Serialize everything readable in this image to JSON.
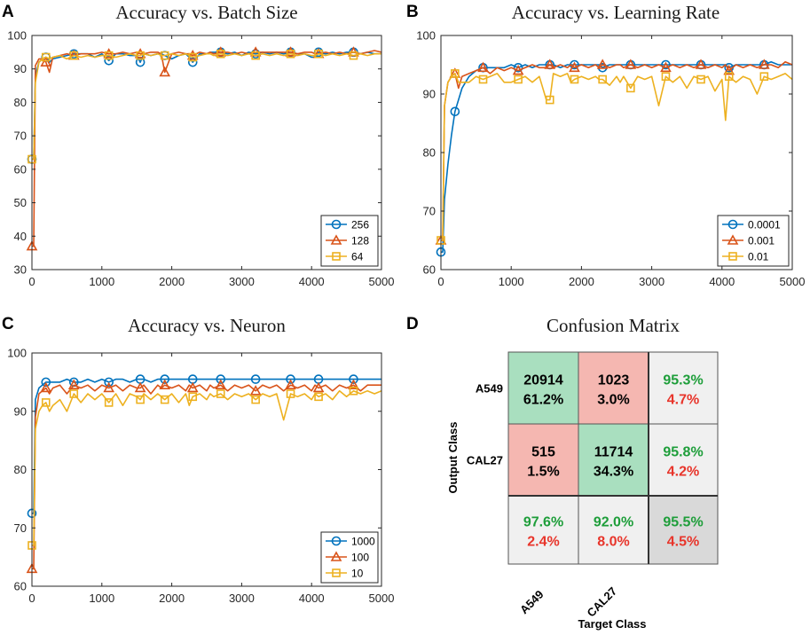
{
  "panels": [
    {
      "letter": "A",
      "title": "Accuracy vs. Batch Size"
    },
    {
      "letter": "B",
      "title": "Accuracy vs. Learning Rate"
    },
    {
      "letter": "C",
      "title": "Accuracy vs. Neuron"
    },
    {
      "letter": "D",
      "title": "Confusion Matrix"
    }
  ],
  "chart_data": [
    {
      "type": "line",
      "title": "Accuracy vs. Batch Size",
      "xlabel": "",
      "ylabel": "",
      "xlim": [
        0,
        5000
      ],
      "ylim": [
        30,
        100
      ],
      "xticks": [
        0,
        1000,
        2000,
        3000,
        4000,
        5000
      ],
      "yticks": [
        30,
        40,
        50,
        60,
        70,
        80,
        90,
        100
      ],
      "legend_position": "bottom-right",
      "x": [
        0,
        25,
        50,
        100,
        150,
        200,
        250,
        300,
        400,
        500,
        600,
        700,
        800,
        900,
        1000,
        1100,
        1200,
        1300,
        1400,
        1500,
        1550,
        1600,
        1700,
        1800,
        1850,
        1900,
        2000,
        2100,
        2200,
        2250,
        2300,
        2400,
        2500,
        2550,
        2600,
        2700,
        2800,
        2900,
        3000,
        3100,
        3200,
        3300,
        3400,
        3500,
        3600,
        3700,
        3800,
        3900,
        4000,
        4050,
        4100,
        4200,
        4300,
        4400,
        4500,
        4600,
        4700,
        4800,
        4900,
        5000
      ],
      "series": [
        {
          "name": "256",
          "color": "#0072BD",
          "marker": "circle",
          "marker_every": 5,
          "values": [
            63,
            63,
            88,
            92,
            93,
            93.5,
            92,
            93,
            93.5,
            94,
            94.5,
            94.5,
            94.5,
            93.5,
            94.5,
            92.5,
            94.5,
            94.5,
            94,
            94,
            92,
            94.5,
            94,
            94.5,
            94.5,
            94,
            93,
            94,
            94.5,
            93.5,
            92,
            94.5,
            94.5,
            95,
            95,
            95,
            94.5,
            95,
            94,
            95,
            94.5,
            95,
            94.5,
            95,
            94.5,
            95,
            94.5,
            94.5,
            93.5,
            93.5,
            95,
            94.5,
            95,
            94.5,
            95,
            95,
            94.5,
            95,
            94.5,
            94.5
          ]
        },
        {
          "name": "128",
          "color": "#D95319",
          "marker": "triangle",
          "marker_every": 5,
          "values": [
            37,
            37,
            91,
            93,
            93,
            92,
            89,
            93.5,
            94,
            94.5,
            94,
            94.5,
            94.5,
            94.5,
            95,
            94.5,
            94.5,
            95,
            94.5,
            95,
            94.5,
            94.5,
            95,
            95,
            94.5,
            89,
            94.5,
            95,
            94.5,
            94.5,
            94,
            95,
            94.5,
            95,
            94.5,
            95,
            95,
            94.5,
            95,
            94.5,
            95,
            95,
            95,
            95,
            95,
            95,
            94.5,
            95,
            95,
            94.5,
            94.5,
            95,
            94.5,
            95,
            94.5,
            95,
            94.5,
            95,
            95.5,
            95
          ]
        },
        {
          "name": "64",
          "color": "#EDB120",
          "marker": "square",
          "marker_every": 5,
          "values": [
            63,
            63,
            86,
            92,
            93,
            93.5,
            93,
            93.5,
            94,
            93,
            94,
            93.5,
            94,
            93.5,
            94,
            94,
            93.5,
            94,
            94.5,
            94,
            94,
            94.5,
            94,
            94.5,
            94,
            94,
            94.5,
            94,
            94.5,
            94,
            93.5,
            94,
            94.5,
            94.5,
            94,
            94.5,
            94,
            94.5,
            94,
            94.5,
            94,
            94.5,
            94,
            94.5,
            94,
            94.5,
            94,
            94.5,
            94,
            94,
            94.5,
            94,
            94.5,
            94,
            94.5,
            94,
            94.5,
            94,
            94.5,
            94.5
          ]
        }
      ]
    },
    {
      "type": "line",
      "title": "Accuracy vs. Learning Rate",
      "xlabel": "",
      "ylabel": "",
      "xlim": [
        0,
        5000
      ],
      "ylim": [
        60,
        100
      ],
      "xticks": [
        0,
        1000,
        2000,
        3000,
        4000,
        5000
      ],
      "yticks": [
        60,
        70,
        80,
        90,
        100
      ],
      "legend_position": "bottom-right",
      "x": [
        0,
        25,
        50,
        100,
        150,
        200,
        250,
        300,
        400,
        500,
        600,
        700,
        800,
        900,
        1000,
        1100,
        1200,
        1300,
        1400,
        1500,
        1550,
        1600,
        1700,
        1800,
        1850,
        1900,
        2000,
        2100,
        2200,
        2250,
        2300,
        2400,
        2500,
        2550,
        2600,
        2700,
        2800,
        2900,
        3000,
        3100,
        3200,
        3300,
        3400,
        3500,
        3600,
        3700,
        3800,
        3900,
        4000,
        4050,
        4100,
        4200,
        4300,
        4400,
        4500,
        4600,
        4700,
        4800,
        4900,
        5000
      ],
      "series": [
        {
          "name": "0.0001",
          "color": "#0072BD",
          "marker": "circle",
          "marker_every": 5,
          "values": [
            63,
            63,
            72,
            78,
            83,
            87,
            89,
            91,
            93,
            94,
            94.5,
            94.5,
            94.5,
            94.5,
            95,
            94.5,
            95,
            94.5,
            95,
            95,
            95,
            95,
            94.5,
            95,
            95,
            95,
            95,
            95,
            95,
            95,
            94.5,
            95,
            95,
            95,
            95,
            95,
            95,
            95,
            95,
            95,
            95,
            95,
            95,
            95,
            95,
            95,
            95,
            95,
            95,
            95,
            94.5,
            95,
            95,
            95,
            95,
            95,
            95.5,
            95,
            95,
            95
          ]
        },
        {
          "name": "0.001",
          "color": "#D95319",
          "marker": "triangle",
          "marker_every": 5,
          "values": [
            65,
            65,
            88,
            92,
            93,
            93.5,
            91,
            93,
            93.5,
            94,
            94.5,
            93.5,
            94.5,
            94,
            94.5,
            94,
            94.5,
            95,
            94.5,
            94.5,
            95,
            94.5,
            95,
            94.5,
            95,
            94.5,
            95,
            94.5,
            95,
            94.5,
            95,
            94.5,
            95,
            95,
            94.5,
            95,
            94.5,
            95,
            94.5,
            95,
            94.5,
            95,
            94.5,
            95,
            94.5,
            95,
            94.5,
            95,
            94.5,
            95,
            94,
            95,
            94.5,
            95,
            94.5,
            95,
            95,
            94.5,
            95.5,
            95
          ]
        },
        {
          "name": "0.01",
          "color": "#EDB120",
          "marker": "square",
          "marker_every": 5,
          "values": [
            65,
            65,
            88,
            92,
            93,
            93.5,
            92,
            92,
            92,
            93,
            92.5,
            93,
            93.5,
            92,
            92,
            92.5,
            93,
            92,
            93,
            89,
            89,
            93.5,
            93,
            93.5,
            92,
            92.5,
            93,
            92.5,
            93,
            92.5,
            92.5,
            91.5,
            93,
            92,
            93,
            91,
            93,
            92.5,
            93,
            88,
            93,
            92,
            93,
            91,
            93,
            92.5,
            93,
            90.5,
            92.5,
            85.5,
            93,
            92,
            93,
            92.5,
            90,
            93,
            92.5,
            93,
            93.5,
            92.5
          ]
        }
      ]
    },
    {
      "type": "line",
      "title": "Accuracy vs. Neuron",
      "xlabel": "",
      "ylabel": "",
      "xlim": [
        0,
        5000
      ],
      "ylim": [
        60,
        100
      ],
      "xticks": [
        0,
        1000,
        2000,
        3000,
        4000,
        5000
      ],
      "yticks": [
        60,
        70,
        80,
        90,
        100
      ],
      "legend_position": "bottom-right",
      "x": [
        0,
        25,
        50,
        100,
        150,
        200,
        250,
        300,
        400,
        500,
        600,
        700,
        800,
        900,
        1000,
        1100,
        1200,
        1300,
        1400,
        1500,
        1550,
        1600,
        1700,
        1800,
        1850,
        1900,
        2000,
        2100,
        2200,
        2250,
        2300,
        2400,
        2500,
        2550,
        2600,
        2700,
        2800,
        2900,
        3000,
        3100,
        3200,
        3300,
        3400,
        3500,
        3600,
        3700,
        3800,
        3900,
        4000,
        4050,
        4100,
        4200,
        4300,
        4400,
        4500,
        4600,
        4700,
        4800,
        4900,
        5000
      ],
      "series": [
        {
          "name": "1000",
          "color": "#0072BD",
          "marker": "circle",
          "marker_every": 5,
          "values": [
            72.5,
            72.5,
            92,
            94,
            94.5,
            95,
            95,
            95,
            95,
            95.5,
            95,
            95,
            95.5,
            95,
            95.5,
            95,
            95.5,
            95.5,
            95,
            95.5,
            95.5,
            95.5,
            95,
            95.5,
            95.5,
            95.5,
            95.5,
            95.5,
            95.5,
            95.5,
            95.5,
            95.5,
            95.5,
            95.5,
            95.5,
            95.5,
            95.5,
            95.5,
            95.5,
            95.5,
            95.5,
            95.5,
            95.5,
            95.5,
            95.5,
            95.5,
            95.5,
            95.5,
            95.5,
            95.5,
            95.5,
            95.5,
            95.5,
            95.5,
            95.5,
            95.5,
            95.5,
            95.5,
            95.5,
            95.5
          ]
        },
        {
          "name": "100",
          "color": "#D95319",
          "marker": "triangle",
          "marker_every": 5,
          "values": [
            63,
            63,
            89,
            93,
            93.5,
            94,
            93,
            94,
            94.5,
            93,
            94.5,
            94,
            94.5,
            93.5,
            94.5,
            94,
            94.5,
            93.5,
            94.5,
            94,
            94,
            94.5,
            93,
            94.5,
            94,
            94.5,
            94,
            94.5,
            93.5,
            94.5,
            94,
            94.5,
            93.5,
            94.5,
            94,
            94.5,
            93.5,
            94.5,
            94,
            94.5,
            93.5,
            94.5,
            94,
            94.5,
            93.5,
            94.5,
            94,
            94.5,
            93.5,
            94.5,
            94,
            94.5,
            93.5,
            94.5,
            94,
            94.5,
            93.5,
            94.5,
            94.5,
            94.5
          ]
        },
        {
          "name": "10",
          "color": "#EDB120",
          "marker": "square",
          "marker_every": 5,
          "values": [
            67,
            67,
            87,
            90,
            91,
            91.5,
            90,
            91,
            92,
            90,
            93,
            91.5,
            93,
            92,
            93,
            91.5,
            93,
            91,
            93,
            92.5,
            92,
            93,
            92,
            93,
            92.5,
            92,
            93,
            91.5,
            93,
            91,
            92.5,
            93,
            92,
            93,
            92.5,
            93,
            92,
            93,
            92.5,
            93,
            92,
            93,
            92.5,
            93,
            88.5,
            93,
            92.5,
            93,
            92,
            93,
            92.5,
            93,
            92,
            93.5,
            92.5,
            93.5,
            93,
            93.5,
            93,
            93.5
          ]
        }
      ]
    },
    {
      "type": "table",
      "title": "Confusion Matrix",
      "xlabel": "Target Class",
      "ylabel": "Output Class",
      "row_labels": [
        "A549",
        "CAL27"
      ],
      "col_labels": [
        "A549",
        "CAL27"
      ],
      "cells": [
        [
          {
            "count": "20914",
            "pct": "61.2%",
            "kind": "correct"
          },
          {
            "count": "1023",
            "pct": "3.0%",
            "kind": "wrong"
          },
          {
            "top": "95.3%",
            "bottom": "4.7%",
            "kind": "summary"
          }
        ],
        [
          {
            "count": "515",
            "pct": "1.5%",
            "kind": "wrong"
          },
          {
            "count": "11714",
            "pct": "34.3%",
            "kind": "correct"
          },
          {
            "top": "95.8%",
            "bottom": "4.2%",
            "kind": "summary"
          }
        ],
        [
          {
            "top": "97.6%",
            "bottom": "2.4%",
            "kind": "summary"
          },
          {
            "top": "92.0%",
            "bottom": "8.0%",
            "kind": "summary"
          },
          {
            "top": "95.5%",
            "bottom": "4.5%",
            "kind": "total"
          }
        ]
      ],
      "colors": {
        "correct": "#A9DFBF",
        "wrong": "#F5B7B1",
        "summary": "#F0F0F0",
        "total": "#D9D9D9",
        "good_text": "#1E9E3A",
        "bad_text": "#E8352B"
      }
    }
  ]
}
